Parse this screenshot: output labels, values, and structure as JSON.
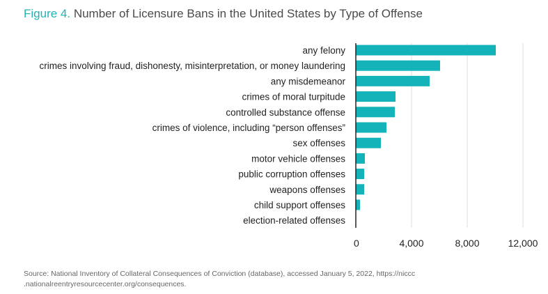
{
  "figure": {
    "label": "Figure 4.",
    "title": "Number of Licensure Bans in the United States by Type of Offense"
  },
  "source": {
    "line1": "Source: National Inventory of Collateral Consequences of Conviction (database), accessed January 5, 2022, https://niccc",
    "line2": ".nationalreentryresourcecenter.org/consequences."
  },
  "colors": {
    "bar": "#13b3b9",
    "grid": "#dddddd",
    "axis": "#222222"
  },
  "chart_data": {
    "type": "bar",
    "orientation": "horizontal",
    "title": "Number of Licensure Bans in the United States by Type of Offense",
    "categories": [
      "any felony",
      "crimes involving fraud, dishonesty, misinterpretation, or money laundering",
      "any misdemeanor",
      "crimes of moral turpitude",
      "controlled substance offense",
      "crimes of violence, including “person offenses”",
      "sex offenses",
      "motor vehicle offenses",
      "public corruption offenses",
      "weapons offenses",
      "child support offenses",
      "election-related offenses"
    ],
    "values": [
      10050,
      6050,
      5300,
      2850,
      2800,
      2200,
      1800,
      650,
      600,
      600,
      300,
      0
    ],
    "xlim": [
      0,
      12000
    ],
    "xticks": [
      0,
      4000,
      8000,
      12000
    ],
    "xtick_labels": [
      "0",
      "4,000",
      "8,000",
      "12,000"
    ],
    "grid": true
  }
}
